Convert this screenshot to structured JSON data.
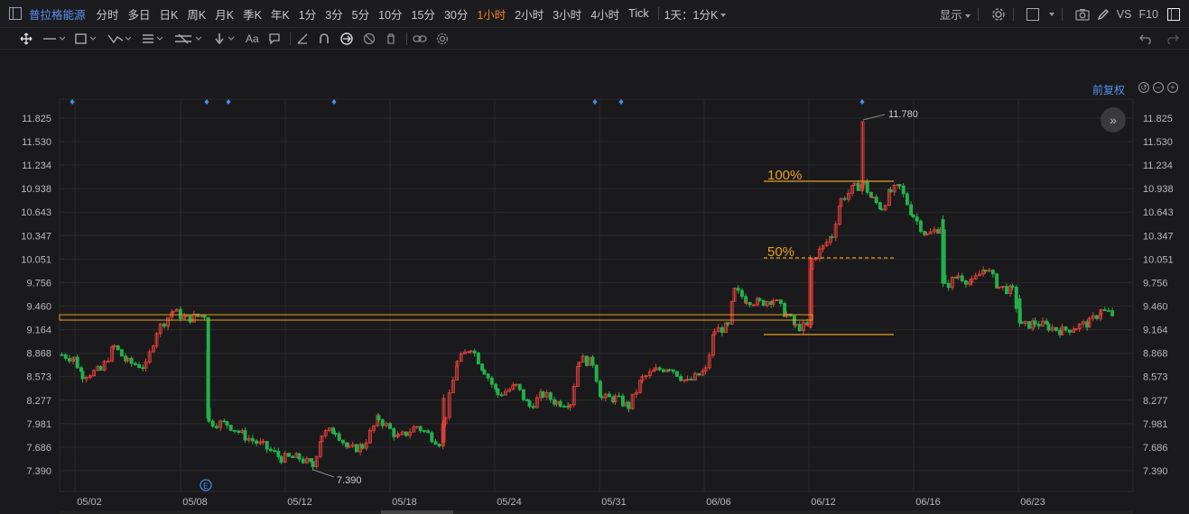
{
  "topbar": {
    "stock_name": "普拉格能源",
    "timeframes": [
      "分时",
      "多日",
      "日K",
      "周K",
      "月K",
      "季K",
      "年K",
      "1分",
      "3分",
      "5分",
      "10分",
      "15分",
      "30分",
      "1小时",
      "2小时",
      "3小时",
      "4小时",
      "Tick",
      "1天：1分K"
    ],
    "active_timeframe": "1小时",
    "display_label": "显示",
    "vs_label": "VS",
    "f10_label": "F10"
  },
  "drawing_tools": [
    "move-icon",
    "line-icon",
    "shape-icon",
    "path-icon",
    "fib-icon",
    "pattern-icon",
    "arrow-icon",
    "text-icon",
    "comment-icon",
    "pen-icon",
    "magnet-icon",
    "lock-icon",
    "hide-icon",
    "delete-icon",
    "link-icon",
    "settings-icon"
  ],
  "chart_panel": {
    "adjust_label": "前复权",
    "expand_label": "»"
  },
  "chart_data": {
    "type": "candlestick",
    "y_ticks": [
      "11.825",
      "11.530",
      "11.234",
      "10.938",
      "10.643",
      "10.347",
      "10.051",
      "9.756",
      "9.460",
      "9.164",
      "8.868",
      "8.573",
      "8.277",
      "7.981",
      "7.686",
      "7.390"
    ],
    "x_ticks": [
      "05/02",
      "05/08",
      "05/12",
      "05/18",
      "05/24",
      "05/31",
      "06/06",
      "06/12",
      "06/16",
      "06/23"
    ],
    "ylim": [
      7.2,
      12.0
    ],
    "high_label": "11.780",
    "low_label": "7.390",
    "fib_labels": [
      "100%",
      "50%"
    ],
    "event_marker": "E",
    "colors": {
      "up": "#e0403a",
      "down": "#22b14c",
      "grid": "#2a2a2d",
      "fib": "#e8a020",
      "axis_text": "#b8b8b8"
    }
  }
}
